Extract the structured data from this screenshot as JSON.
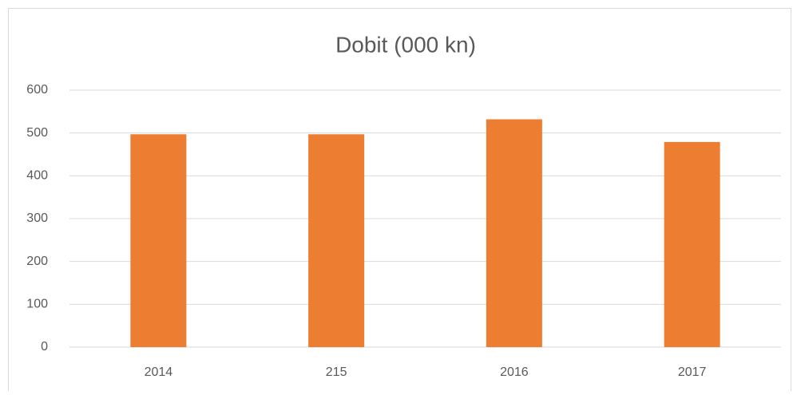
{
  "chart_data": {
    "type": "bar",
    "title": "Dobit (000 kn)",
    "categories": [
      "2014",
      "215",
      "2016",
      "2017"
    ],
    "values": [
      497,
      497,
      532,
      479
    ],
    "color": "#ed7d31",
    "ylim": [
      0,
      600
    ],
    "yticks": [
      0,
      100,
      200,
      300,
      400,
      500,
      600
    ],
    "grid": true
  }
}
